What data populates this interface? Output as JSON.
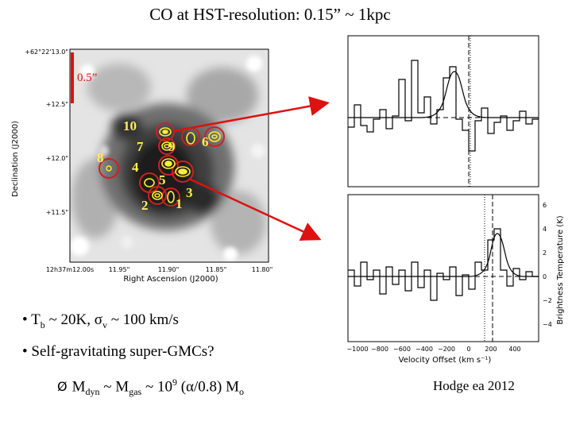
{
  "title": "CO at HST-resolution: 0.15” ~ 1kpc",
  "map": {
    "scale_label": "0.5”",
    "ylabel": "Declination (J2000)",
    "xlabel": "Right Ascension (J2000)",
    "yticks": [
      "+62°22'13.0\"",
      "+12.5\"",
      "+12.0\"",
      "+11.5\""
    ],
    "xticks": [
      "12h37m12.00s",
      "11.95\"",
      "11.90\"",
      "11.85\"",
      "11.80\""
    ],
    "clumps": [
      "10",
      "7",
      "9",
      "6",
      "8",
      "4",
      "5",
      "3",
      "2",
      "1"
    ],
    "colors": {
      "circle": "#cc2222",
      "contour": "#ffee33",
      "arrow": "#dd1111"
    }
  },
  "spectra": {
    "xlabel": "Velocity Offset (km s⁻¹)",
    "ylabel": "Brightness Temperature (K)",
    "xticks": [
      "−1000",
      "−800",
      "−600",
      "−400",
      "−200",
      "0",
      "200",
      "400"
    ],
    "yticks": [
      "6",
      "4",
      "2",
      "0",
      "−2",
      "−4"
    ]
  },
  "bullets": {
    "b1": {
      "marker": "•",
      "pre": "T",
      "sub1": "b",
      "mid": " ~ 20K, σ",
      "sub2": "v",
      "post": " ~ 100  km/s"
    },
    "b2": {
      "marker": "•",
      "text": "Self-gravitating super-GMCs?"
    },
    "b3": {
      "marker": "Ø",
      "m": "M",
      "sub1": "dyn",
      "mid1": " ~ M",
      "sub2": "gas",
      "mid2": " ~ 10",
      "sup": "9",
      "mid3": "  (α/0.8) M",
      "sub3": "o"
    }
  },
  "citation": "Hodge ea 2012"
}
